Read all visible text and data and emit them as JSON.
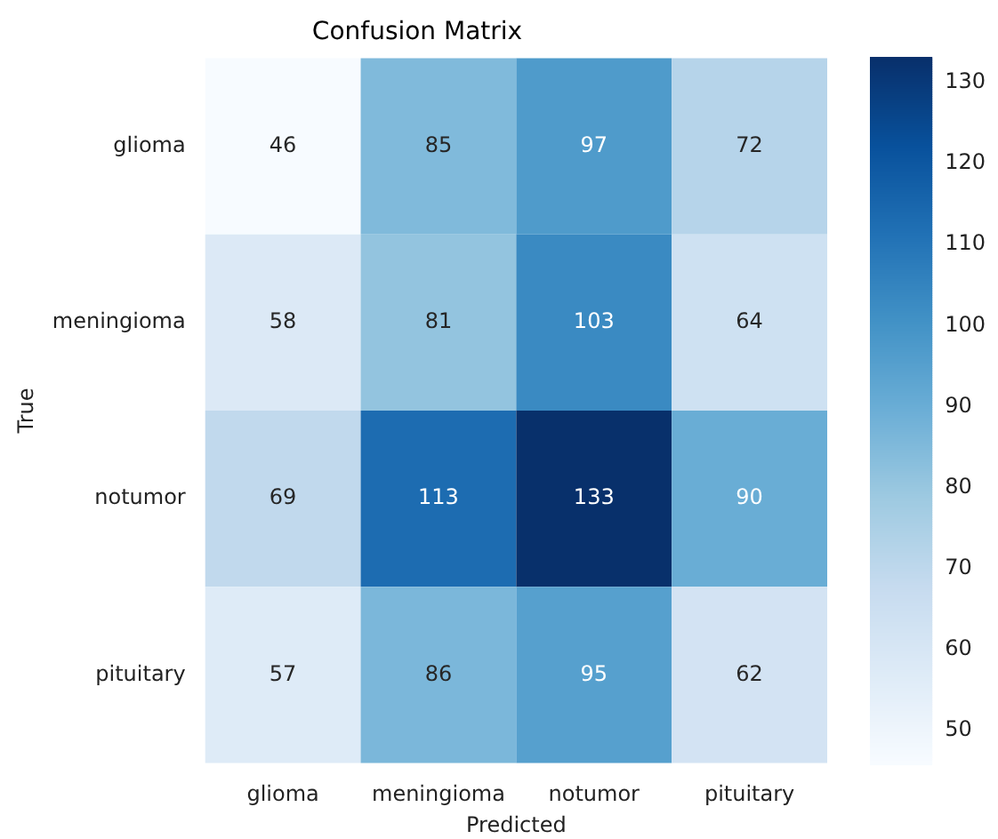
{
  "chart_data": {
    "type": "heatmap",
    "title": "Confusion Matrix",
    "xlabel": "Predicted",
    "ylabel": "True",
    "categories": [
      "glioma",
      "meningioma",
      "notumor",
      "pituitary"
    ],
    "y_categories": [
      "glioma",
      "meningioma",
      "notumor",
      "pituitary"
    ],
    "cells": [
      [
        46,
        85,
        97,
        72
      ],
      [
        58,
        81,
        103,
        64
      ],
      [
        69,
        113,
        133,
        90
      ],
      [
        57,
        86,
        95,
        62
      ]
    ],
    "data_labels": true,
    "clim": [
      46,
      133
    ],
    "cticks": [
      50,
      60,
      70,
      80,
      90,
      100,
      110,
      120,
      130
    ]
  }
}
